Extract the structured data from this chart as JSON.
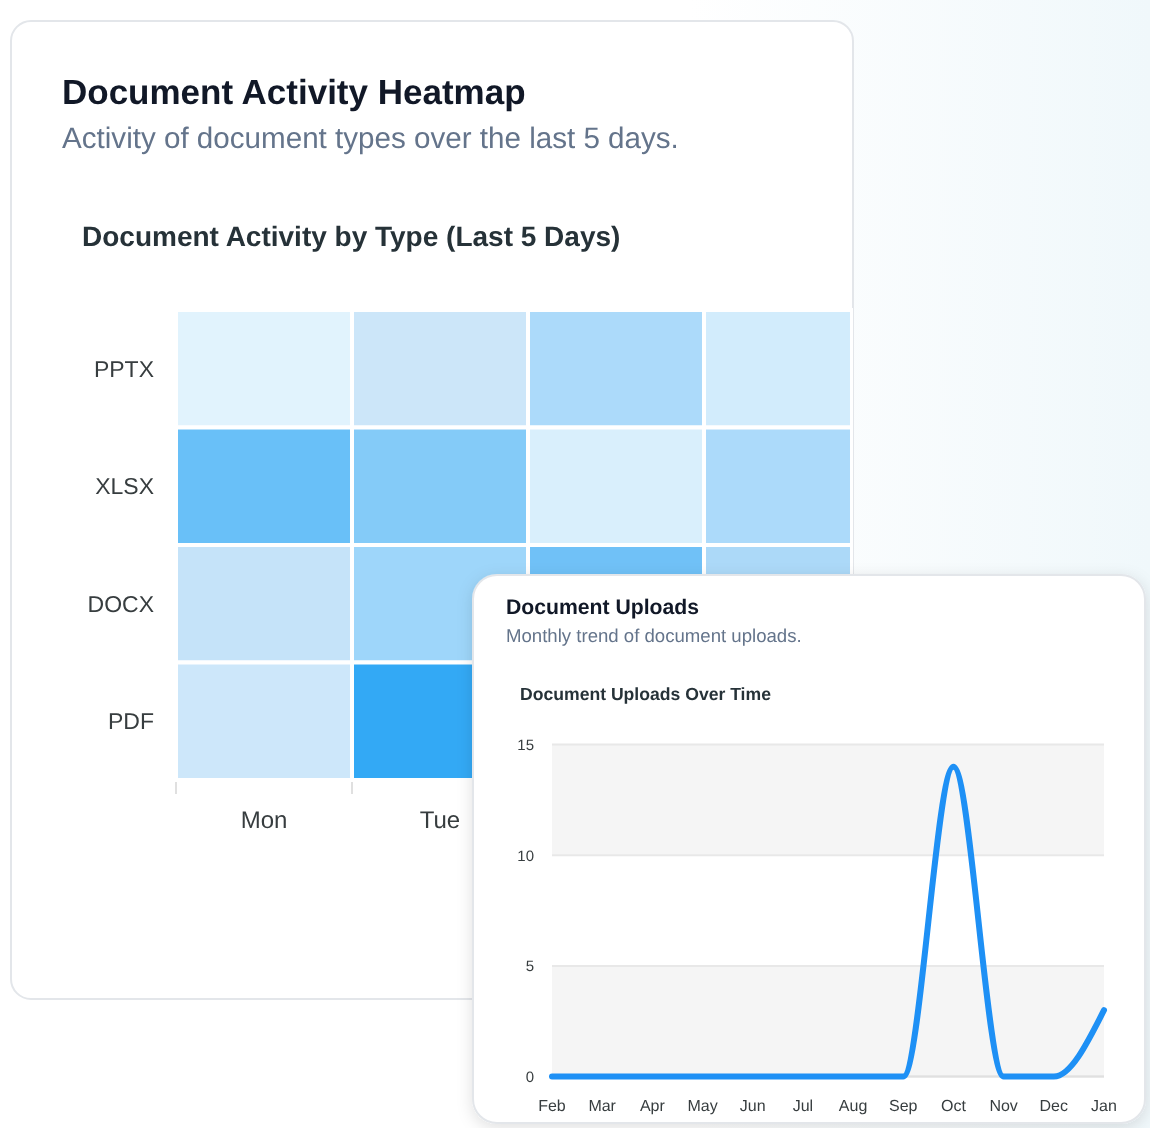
{
  "chart_data": [
    {
      "type": "other",
      "title": "Document Activity Heatmap",
      "subtitle": "Activity of document types over the last 5 days.",
      "annotations": [
        "Document Activity by Type (Last 5 Days)"
      ],
      "categories": [
        "Mon",
        "Tue",
        null,
        null
      ],
      "y_categories": [
        "PPTX",
        "XLSX",
        "DOCX",
        "PDF"
      ],
      "colors": [
        "#e1f3fd",
        "#cce6f9",
        "#acdafa",
        "#d2ecfc",
        "#69c0f8",
        "#84cbf8",
        "#d9effc",
        "#acdafa",
        "#c5e3f9",
        "#9ed6fa",
        "#70c1f7",
        "#acd9f8",
        "#cde7fa",
        "#33a9f5",
        null,
        null
      ]
    },
    {
      "type": "line",
      "title": "Document Uploads",
      "subtitle": "Monthly trend of document uploads.",
      "annotations": [
        "Document Uploads Over Time"
      ],
      "categories": [
        "Feb",
        "Mar",
        "Apr",
        "May",
        "Jun",
        "Jul",
        "Aug",
        "Sep",
        "Oct",
        "Nov",
        "Dec",
        "Jan"
      ],
      "values": [
        0,
        0,
        0,
        0,
        0,
        0,
        0,
        0,
        14,
        0,
        0,
        3
      ],
      "color": "#1e90f5",
      "ylim": [
        0,
        15
      ],
      "yticks": [
        0,
        5,
        10,
        15
      ],
      "grid": "y"
    }
  ]
}
